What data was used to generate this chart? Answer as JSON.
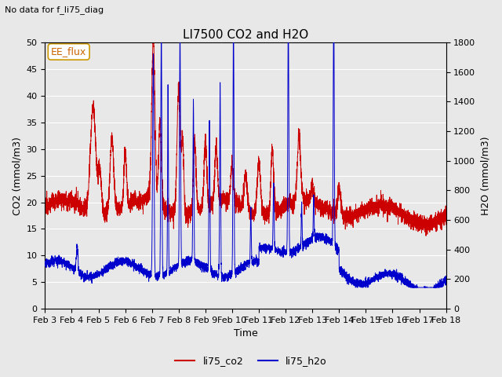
{
  "title": "LI7500 CO2 and H2O",
  "subtitle": "No data for f_li75_diag",
  "xlabel": "Time",
  "ylabel_left": "CO2 (mmol/m3)",
  "ylabel_right": "H2O (mmol/m3)",
  "ylim_left": [
    0,
    50
  ],
  "ylim_right": [
    0,
    1800
  ],
  "yticks_left": [
    0,
    5,
    10,
    15,
    20,
    25,
    30,
    35,
    40,
    45,
    50
  ],
  "yticks_right": [
    0,
    200,
    400,
    600,
    800,
    1000,
    1200,
    1400,
    1600,
    1800
  ],
  "xlim": [
    0,
    15
  ],
  "xtick_labels": [
    "Feb 3",
    "Feb 4",
    "Feb 5",
    "Feb 6",
    "Feb 7",
    "Feb 8",
    "Feb 9",
    "Feb 10",
    "Feb 11",
    "Feb 12",
    "Feb 13",
    "Feb 14",
    "Feb 15",
    "Feb 16",
    "Feb 17",
    "Feb 18"
  ],
  "xtick_positions": [
    0,
    1,
    2,
    3,
    4,
    5,
    6,
    7,
    8,
    9,
    10,
    11,
    12,
    13,
    14,
    15
  ],
  "color_co2": "#cc0000",
  "color_h2o": "#0000cc",
  "legend_label_co2": "li75_co2",
  "legend_label_h2o": "li75_h2o",
  "box_label": "EE_flux",
  "box_color": "#cc6600",
  "box_edge": "#cc9900",
  "background_color": "#e8e8e8",
  "plot_background": "#e8e8e8",
  "grid_color": "#ffffff"
}
